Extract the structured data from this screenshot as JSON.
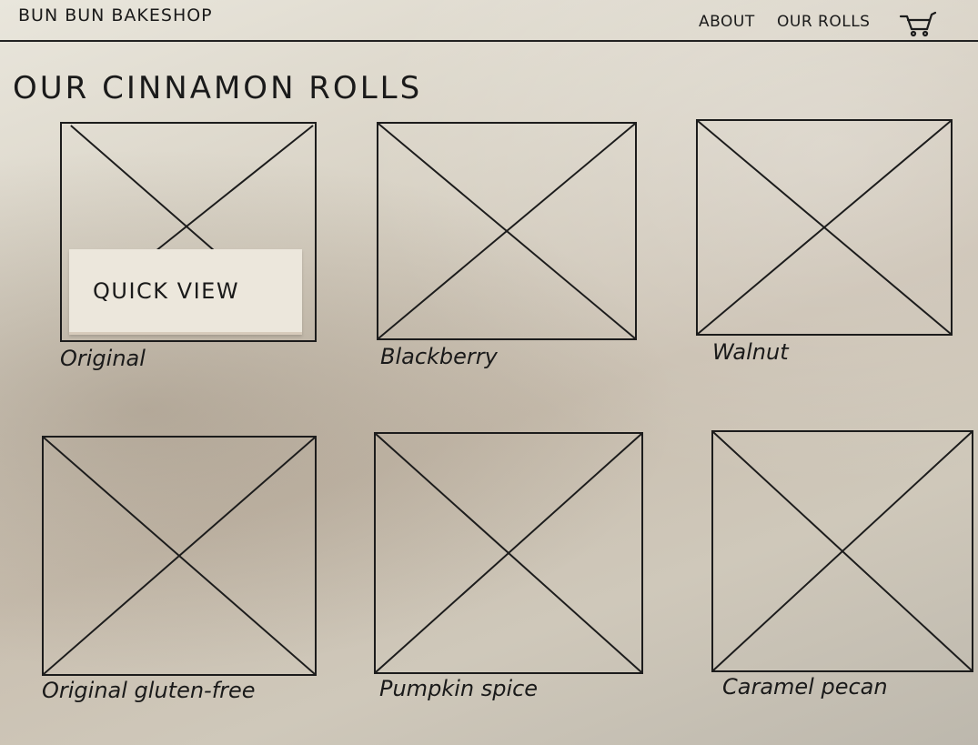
{
  "header": {
    "brand": "BUN BUN BAKESHOP",
    "nav": {
      "about": "ABOUT",
      "our_rolls": "OUR ROLLS"
    },
    "cart_icon": "cart-icon"
  },
  "main": {
    "title": "OUR CINNAMON ROLLS",
    "quick_view_label": "QUICK VIEW",
    "products": [
      {
        "name": "Original",
        "image_icon": "image-placeholder-icon"
      },
      {
        "name": "Blackberry",
        "image_icon": "image-placeholder-icon"
      },
      {
        "name": "Walnut",
        "image_icon": "image-placeholder-icon"
      },
      {
        "name": "Original gluten-free",
        "image_icon": "image-placeholder-icon"
      },
      {
        "name": "Pumpkin spice",
        "image_icon": "image-placeholder-icon"
      },
      {
        "name": "Caramel pecan",
        "image_icon": "image-placeholder-icon"
      }
    ]
  },
  "colors": {
    "ink": "#1c1c1c",
    "paper": "#e9e6dc"
  }
}
